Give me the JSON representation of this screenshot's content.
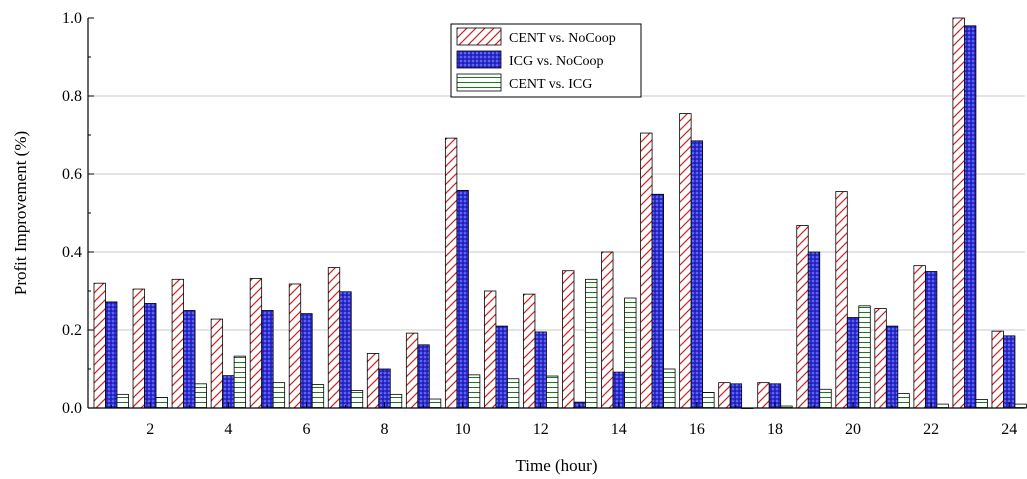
{
  "chart_data": {
    "type": "bar",
    "xlabel": "Time (hour)",
    "ylabel": "Profit Improvement (%)",
    "ylim": [
      0,
      1.0
    ],
    "yticks": [
      "0.0",
      "0.2",
      "0.4",
      "0.6",
      "0.8",
      "1.0"
    ],
    "xticks": [
      "2",
      "4",
      "6",
      "8",
      "10",
      "12",
      "14",
      "16",
      "18",
      "20",
      "22",
      "24"
    ],
    "categories": [
      1,
      2,
      3,
      4,
      5,
      6,
      7,
      8,
      9,
      10,
      11,
      12,
      13,
      14,
      15,
      16,
      17,
      18,
      19,
      20,
      21,
      22,
      23,
      24
    ],
    "grid": "horizontal",
    "legend_position": "top-center",
    "series": [
      {
        "name": "CENT vs. NoCoop",
        "pattern": "diagonal-hatch",
        "color": "#cc2222",
        "values": [
          0.32,
          0.305,
          0.33,
          0.228,
          0.332,
          0.318,
          0.36,
          0.14,
          0.192,
          0.692,
          0.3,
          0.292,
          0.352,
          0.4,
          0.705,
          0.755,
          0.065,
          0.065,
          0.468,
          0.555,
          0.255,
          0.365,
          1.0,
          0.197
        ]
      },
      {
        "name": "ICG vs. NoCoop",
        "pattern": "dotted-blue",
        "color": "#2a2ad0",
        "values": [
          0.272,
          0.268,
          0.25,
          0.083,
          0.25,
          0.242,
          0.298,
          0.1,
          0.162,
          0.558,
          0.21,
          0.195,
          0.015,
          0.092,
          0.548,
          0.685,
          0.062,
          0.062,
          0.4,
          0.232,
          0.21,
          0.35,
          0.98,
          0.185
        ]
      },
      {
        "name": "CENT vs. ICG",
        "pattern": "horizontal-lines",
        "color": "#1a7a1a",
        "values": [
          0.035,
          0.027,
          0.062,
          0.133,
          0.065,
          0.06,
          0.045,
          0.035,
          0.023,
          0.085,
          0.075,
          0.082,
          0.33,
          0.282,
          0.1,
          0.04,
          0.0,
          0.005,
          0.048,
          0.262,
          0.037,
          0.01,
          0.022,
          0.01
        ]
      }
    ]
  }
}
